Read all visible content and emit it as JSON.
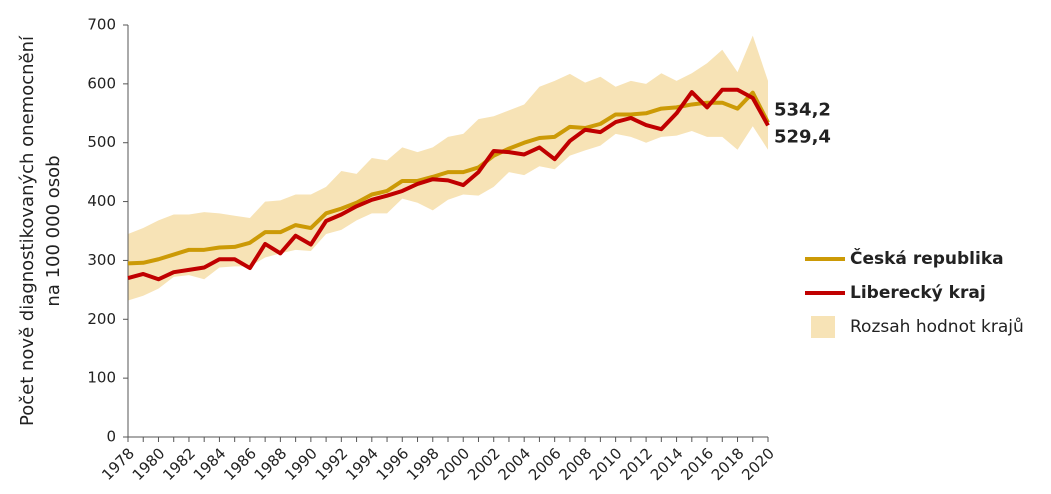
{
  "chart_data": {
    "type": "line",
    "ylabel": [
      "Počet nově diagnostikovaných onemocnění",
      "na 100 000 osob"
    ],
    "x": [
      1978,
      1979,
      1980,
      1981,
      1982,
      1983,
      1984,
      1985,
      1986,
      1987,
      1988,
      1989,
      1990,
      1991,
      1992,
      1993,
      1994,
      1995,
      1996,
      1997,
      1998,
      1999,
      2000,
      2001,
      2002,
      2003,
      2004,
      2005,
      2006,
      2007,
      2008,
      2009,
      2010,
      2011,
      2012,
      2013,
      2014,
      2015,
      2016,
      2017,
      2018,
      2019,
      2020
    ],
    "xlim": [
      1978,
      2020
    ],
    "xticks": [
      1978,
      1980,
      1982,
      1984,
      1986,
      1988,
      1990,
      1992,
      1994,
      1996,
      1998,
      2000,
      2002,
      2004,
      2006,
      2008,
      2010,
      2012,
      2014,
      2016,
      2018,
      2020
    ],
    "ylim": [
      0,
      700
    ],
    "yticks": [
      0,
      100,
      200,
      300,
      400,
      500,
      600,
      700
    ],
    "band": {
      "name": "Rozsah hodnot krajů",
      "color": "#f7e3b6",
      "max": [
        345,
        355,
        368,
        378,
        378,
        382,
        380,
        376,
        372,
        400,
        402,
        412,
        412,
        425,
        452,
        447,
        474,
        470,
        492,
        484,
        492,
        510,
        515,
        540,
        545,
        555,
        565,
        595,
        605,
        617,
        602,
        612,
        595,
        605,
        600,
        618,
        605,
        618,
        635,
        658,
        620,
        682,
        605
      ],
      "min": [
        232,
        240,
        252,
        272,
        275,
        268,
        288,
        290,
        290,
        305,
        312,
        318,
        316,
        345,
        352,
        368,
        380,
        380,
        405,
        398,
        385,
        403,
        412,
        410,
        425,
        450,
        445,
        460,
        455,
        478,
        487,
        495,
        515,
        510,
        500,
        510,
        512,
        520,
        510,
        510,
        488,
        528,
        488
      ]
    },
    "series": [
      {
        "name": "Česká republika",
        "color": "#cc9a06",
        "values": [
          295,
          296,
          302,
          310,
          318,
          318,
          322,
          323,
          330,
          348,
          348,
          360,
          355,
          380,
          388,
          398,
          412,
          418,
          435,
          435,
          442,
          450,
          450,
          458,
          478,
          490,
          500,
          508,
          510,
          527,
          525,
          532,
          548,
          548,
          550,
          558,
          560,
          565,
          568,
          568,
          558,
          585,
          534.2
        ],
        "value_labels": [
          null,
          null,
          null,
          null,
          null,
          null,
          null,
          null,
          null,
          null,
          null,
          null,
          null,
          null,
          null,
          null,
          null,
          null,
          null,
          null,
          null,
          null,
          null,
          null,
          null,
          null,
          null,
          null,
          null,
          null,
          null,
          null,
          null,
          null,
          null,
          null,
          null,
          null,
          null,
          null,
          null,
          null,
          "534,2"
        ]
      },
      {
        "name": "Liberecký kraj",
        "color": "#c00000",
        "values": [
          270,
          277,
          268,
          280,
          284,
          288,
          302,
          302,
          287,
          328,
          312,
          342,
          327,
          367,
          378,
          392,
          403,
          410,
          418,
          430,
          438,
          436,
          428,
          450,
          486,
          484,
          480,
          492,
          472,
          503,
          522,
          518,
          535,
          542,
          530,
          523,
          550,
          586,
          560,
          590,
          590,
          576,
          529.4
        ],
        "value_labels": [
          null,
          null,
          null,
          null,
          null,
          null,
          null,
          null,
          null,
          null,
          null,
          null,
          null,
          null,
          null,
          null,
          null,
          null,
          null,
          null,
          null,
          null,
          null,
          null,
          null,
          null,
          null,
          null,
          null,
          null,
          null,
          null,
          null,
          null,
          null,
          null,
          null,
          null,
          null,
          null,
          null,
          null,
          "529,4"
        ]
      }
    ]
  }
}
